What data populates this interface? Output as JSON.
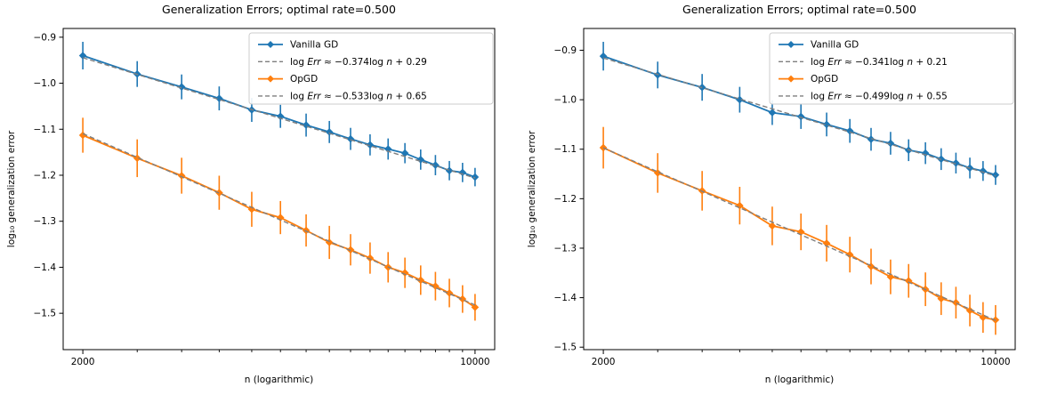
{
  "figure_background": "#ffffff",
  "colors": {
    "vanilla_gd": "#1f77b4",
    "opgd": "#ff7f0e",
    "fit_line": "#7f7f7f",
    "axis": "#000000",
    "legend_border": "#cccccc"
  },
  "chart_data": [
    {
      "type": "line",
      "title": "Generalization Errors; optimal rate=0.500",
      "xlabel": "n (logarithmic)",
      "ylabel": "log₁₀ generalization error",
      "xscale": "log",
      "legend_position": "upper right",
      "grid": false,
      "x": [
        2000,
        2500,
        3000,
        3500,
        4000,
        4500,
        5000,
        5500,
        6000,
        6500,
        7000,
        7500,
        8000,
        8500,
        9000,
        9500,
        10000
      ],
      "xlim": [
        1845,
        10840
      ],
      "ylim": [
        -1.579,
        -0.881
      ],
      "xticks_major": {
        "values": [
          2000,
          10000
        ],
        "labels": [
          "2000",
          "10000"
        ]
      },
      "xticks_minor": [
        2500,
        3000,
        3500,
        4000,
        4500,
        5000,
        5500,
        6000,
        6500,
        7000,
        7500,
        8000,
        8500,
        9000,
        9500
      ],
      "yticks": [
        -0.9,
        -1.0,
        -1.1,
        -1.2,
        -1.3,
        -1.4,
        -1.5
      ],
      "series": [
        {
          "kind": "data",
          "name": "Vanilla GD",
          "color": "#1f77b4",
          "marker": "diamond",
          "values": [
            -0.94,
            -0.98,
            -1.008,
            -1.033,
            -1.058,
            -1.072,
            -1.091,
            -1.106,
            -1.121,
            -1.134,
            -1.143,
            -1.152,
            -1.166,
            -1.178,
            -1.19,
            -1.194,
            -1.204
          ],
          "errors": [
            0.03,
            0.028,
            0.027,
            0.026,
            0.026,
            0.025,
            0.025,
            0.024,
            0.024,
            0.023,
            0.023,
            0.022,
            0.022,
            0.022,
            0.021,
            0.021,
            0.02
          ]
        },
        {
          "kind": "fit",
          "name": "vanilla-gd-fit",
          "label": "log Err ≈ −0.374log n + 0.29",
          "color": "#7f7f7f",
          "slope": -0.374,
          "intercept": 0.29
        },
        {
          "kind": "data",
          "name": "OpGD",
          "color": "#ff7f0e",
          "marker": "diamond",
          "values": [
            -1.113,
            -1.163,
            -1.201,
            -1.238,
            -1.274,
            -1.292,
            -1.32,
            -1.346,
            -1.362,
            -1.38,
            -1.4,
            -1.412,
            -1.428,
            -1.441,
            -1.456,
            -1.469,
            -1.487
          ],
          "errors": [
            0.038,
            0.041,
            0.039,
            0.037,
            0.038,
            0.036,
            0.035,
            0.036,
            0.034,
            0.034,
            0.033,
            0.033,
            0.032,
            0.031,
            0.031,
            0.03,
            0.029
          ]
        },
        {
          "kind": "fit",
          "name": "opgd-fit",
          "label": "log Err ≈ −0.533log n + 0.65",
          "color": "#7f7f7f",
          "slope": -0.533,
          "intercept": 0.65
        }
      ]
    },
    {
      "type": "line",
      "title": "Generalization Errors; optimal rate=0.500",
      "xlabel": "n (logarithmic)",
      "ylabel": "log₁₀ generalization error",
      "xscale": "log",
      "legend_position": "upper right",
      "grid": false,
      "x": [
        2000,
        2500,
        3000,
        3500,
        4000,
        4500,
        5000,
        5500,
        6000,
        6500,
        7000,
        7500,
        8000,
        8500,
        9000,
        9500,
        10000
      ],
      "xlim": [
        1845,
        10840
      ],
      "ylim": [
        -1.505,
        -0.856
      ],
      "xticks_major": {
        "values": [
          2000,
          10000
        ],
        "labels": [
          "2000",
          "10000"
        ]
      },
      "xticks_minor": [
        2500,
        3000,
        3500,
        4000,
        4500,
        5000,
        5500,
        6000,
        6500,
        7000,
        7500,
        8000,
        8500,
        9000,
        9500
      ],
      "yticks": [
        -0.9,
        -1.0,
        -1.1,
        -1.2,
        -1.3,
        -1.4,
        -1.5
      ],
      "series": [
        {
          "kind": "data",
          "name": "Vanilla GD",
          "color": "#1f77b4",
          "marker": "diamond",
          "values": [
            -0.912,
            -0.95,
            -0.975,
            -1.0,
            -1.026,
            -1.034,
            -1.05,
            -1.063,
            -1.08,
            -1.088,
            -1.102,
            -1.108,
            -1.12,
            -1.128,
            -1.138,
            -1.144,
            -1.152
          ],
          "errors": [
            0.029,
            0.027,
            0.027,
            0.026,
            0.025,
            0.025,
            0.024,
            0.024,
            0.023,
            0.023,
            0.022,
            0.022,
            0.022,
            0.021,
            0.021,
            0.02,
            0.02
          ]
        },
        {
          "kind": "fit",
          "name": "vanilla-gd-fit",
          "label": "log Err ≈ −0.341log n + 0.21",
          "color": "#7f7f7f",
          "slope": -0.341,
          "intercept": 0.21
        },
        {
          "kind": "data",
          "name": "OpGD",
          "color": "#ff7f0e",
          "marker": "diamond",
          "values": [
            -1.097,
            -1.148,
            -1.184,
            -1.214,
            -1.255,
            -1.267,
            -1.29,
            -1.313,
            -1.337,
            -1.358,
            -1.366,
            -1.383,
            -1.402,
            -1.41,
            -1.426,
            -1.44,
            -1.445
          ],
          "errors": [
            0.042,
            0.04,
            0.04,
            0.038,
            0.039,
            0.037,
            0.037,
            0.036,
            0.036,
            0.035,
            0.034,
            0.034,
            0.033,
            0.032,
            0.032,
            0.031,
            0.03
          ]
        },
        {
          "kind": "fit",
          "name": "opgd-fit",
          "label": "log Err ≈ −0.499log n + 0.55",
          "color": "#7f7f7f",
          "slope": -0.499,
          "intercept": 0.55
        }
      ]
    }
  ]
}
